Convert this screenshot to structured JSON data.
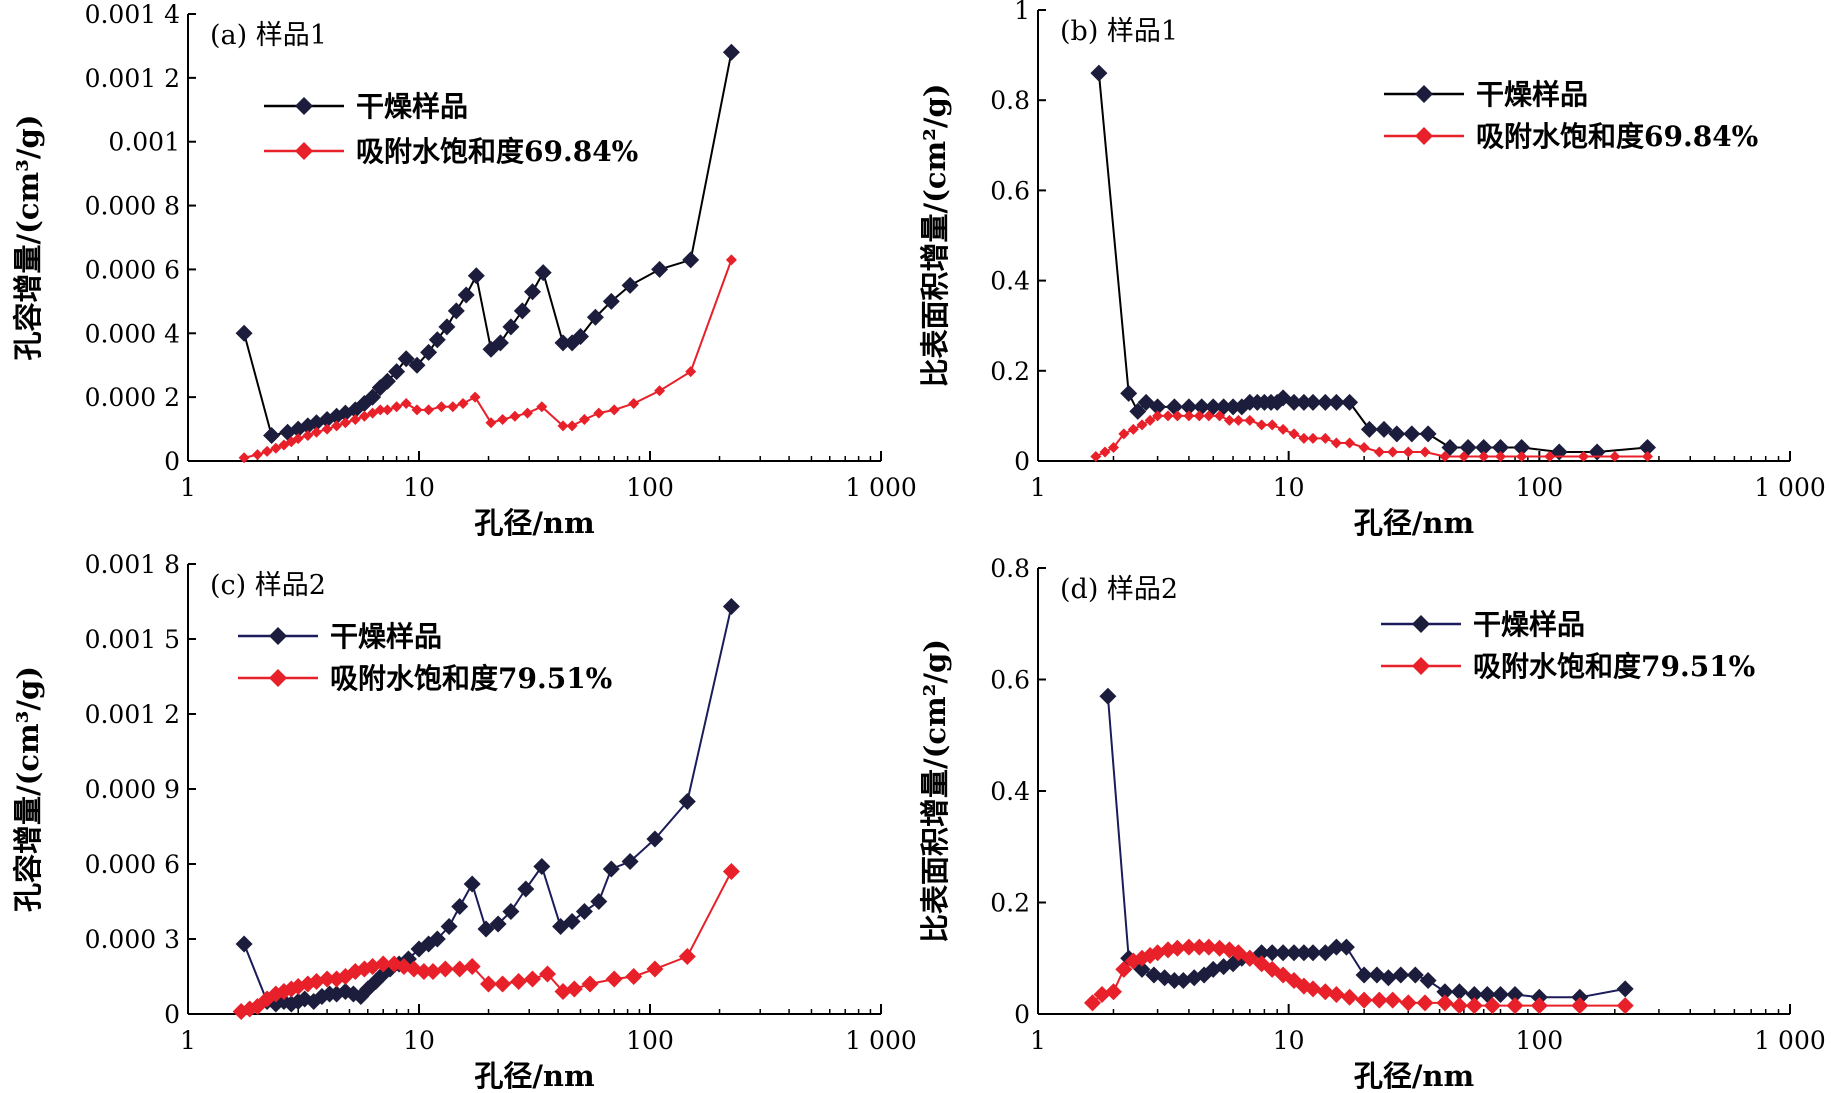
{
  "chart_data": [
    {
      "type": "line",
      "panel_label": "(a) 样品1",
      "xlabel": "孔径/nm",
      "ylabel": "孔容增量/(cm³/g)",
      "xscale": "log",
      "xlim": [
        1,
        1000
      ],
      "ylim": [
        0,
        0.0014
      ],
      "x_ticks": [
        1,
        10,
        100,
        1000
      ],
      "x_tick_labels": [
        "1",
        "10",
        "100",
        "1 000"
      ],
      "y_ticks": [
        0,
        0.0002,
        0.0004,
        0.0006,
        0.0008,
        0.001,
        0.0012,
        0.0014
      ],
      "y_tick_labels": [
        "0",
        "0.000 2",
        "0.000 4",
        "0.000 6",
        "0.000 8",
        "0.001",
        "0.001 2",
        "0.001 4"
      ],
      "legend_position": "top-left",
      "series": [
        {
          "name": "干燥样品",
          "color": "#1c1c3c",
          "line_color": "#000000",
          "marker_size": "large",
          "x": [
            1.75,
            2.3,
            2.7,
            3.0,
            3.3,
            3.6,
            4.0,
            4.4,
            4.8,
            5.3,
            5.8,
            6.3,
            6.8,
            7.3,
            8.0,
            8.8,
            9.8,
            11.0,
            12.0,
            13.2,
            14.5,
            16.0,
            17.7,
            20.5,
            22.5,
            25.0,
            28.0,
            31.0,
            34.5,
            42.0,
            46.0,
            50.0,
            58.0,
            68.0,
            82.0,
            110.0,
            150.0,
            225.0
          ],
          "y": [
            0.0004,
            8e-05,
            9e-05,
            0.0001,
            0.00011,
            0.00012,
            0.00013,
            0.00014,
            0.00015,
            0.00016,
            0.00018,
            0.0002,
            0.00023,
            0.00025,
            0.00028,
            0.00032,
            0.0003,
            0.00034,
            0.00038,
            0.00042,
            0.00047,
            0.00052,
            0.00058,
            0.00035,
            0.00037,
            0.00042,
            0.00047,
            0.00053,
            0.00059,
            0.00037,
            0.00037,
            0.00039,
            0.00045,
            0.0005,
            0.00055,
            0.0006,
            0.00063,
            0.00128
          ]
        },
        {
          "name": "吸附水饱和度69.84%",
          "color": "#e8202a",
          "line_color": "#e8202a",
          "marker_size": "small",
          "x": [
            1.75,
            2.0,
            2.2,
            2.4,
            2.6,
            2.8,
            3.0,
            3.3,
            3.6,
            4.0,
            4.4,
            4.8,
            5.3,
            5.8,
            6.3,
            6.8,
            7.3,
            8.0,
            8.8,
            9.8,
            11.0,
            12.5,
            14.0,
            15.5,
            17.5,
            20.5,
            23.0,
            26.0,
            29.5,
            34.0,
            42.0,
            46.0,
            52.0,
            60.0,
            70.0,
            85.0,
            110.0,
            150.0,
            225.0
          ],
          "y": [
            1e-05,
            2e-05,
            3e-05,
            4e-05,
            5e-05,
            6e-05,
            7e-05,
            8e-05,
            9e-05,
            0.0001,
            0.00011,
            0.00012,
            0.00013,
            0.00014,
            0.00015,
            0.00016,
            0.00016,
            0.00017,
            0.00018,
            0.00016,
            0.00016,
            0.00017,
            0.00017,
            0.00018,
            0.0002,
            0.00012,
            0.00013,
            0.00014,
            0.00015,
            0.00017,
            0.00011,
            0.00011,
            0.00013,
            0.00015,
            0.00016,
            0.00018,
            0.00022,
            0.00028,
            0.00063
          ]
        }
      ]
    },
    {
      "type": "line",
      "panel_label": "(b) 样品1",
      "xlabel": "孔径/nm",
      "ylabel": "比表面积增量/(cm²/g)",
      "xscale": "log",
      "xlim": [
        1,
        1000
      ],
      "ylim": [
        0,
        1
      ],
      "x_ticks": [
        1,
        10,
        100,
        1000
      ],
      "x_tick_labels": [
        "1",
        "10",
        "100",
        "1 000"
      ],
      "y_ticks": [
        0,
        0.2,
        0.4,
        0.6,
        0.8,
        1
      ],
      "y_tick_labels": [
        "0",
        "0.2",
        "0.4",
        "0.6",
        "0.8",
        "1"
      ],
      "legend_position": "top-right",
      "series": [
        {
          "name": "干燥样品",
          "color": "#1c1c3c",
          "line_color": "#000000",
          "marker_size": "large",
          "x": [
            1.75,
            2.3,
            2.5,
            2.7,
            3.0,
            3.5,
            4.0,
            4.5,
            5.0,
            5.5,
            6.0,
            6.5,
            7.0,
            7.5,
            8.0,
            8.5,
            9.0,
            9.5,
            10.5,
            11.5,
            12.5,
            14.0,
            15.5,
            17.5,
            21.0,
            24.0,
            27.0,
            31.0,
            36.0,
            44.0,
            52.0,
            60.0,
            70.0,
            85.0,
            120.0,
            170.0,
            270.0
          ],
          "y": [
            0.86,
            0.15,
            0.11,
            0.13,
            0.12,
            0.12,
            0.12,
            0.12,
            0.12,
            0.12,
            0.12,
            0.12,
            0.13,
            0.13,
            0.13,
            0.13,
            0.13,
            0.14,
            0.13,
            0.13,
            0.13,
            0.13,
            0.13,
            0.13,
            0.07,
            0.07,
            0.06,
            0.06,
            0.06,
            0.03,
            0.03,
            0.03,
            0.03,
            0.03,
            0.02,
            0.02,
            0.03
          ]
        },
        {
          "name": "吸附水饱和度69.84%",
          "color": "#e8202a",
          "line_color": "#e8202a",
          "marker_size": "small",
          "x": [
            1.7,
            1.85,
            2.0,
            2.2,
            2.4,
            2.6,
            2.8,
            3.0,
            3.3,
            3.6,
            4.0,
            4.4,
            4.8,
            5.3,
            5.8,
            6.3,
            7.0,
            7.8,
            8.6,
            9.5,
            10.5,
            11.5,
            12.5,
            14.0,
            15.5,
            17.5,
            20.0,
            23.0,
            26.0,
            30.0,
            35.0,
            42.0,
            50.0,
            60.0,
            70.0,
            85.0,
            110.0,
            150.0,
            200.0,
            270.0
          ],
          "y": [
            0.01,
            0.02,
            0.03,
            0.06,
            0.07,
            0.08,
            0.09,
            0.1,
            0.1,
            0.1,
            0.1,
            0.1,
            0.1,
            0.1,
            0.09,
            0.09,
            0.09,
            0.08,
            0.08,
            0.07,
            0.06,
            0.05,
            0.05,
            0.05,
            0.04,
            0.04,
            0.03,
            0.02,
            0.02,
            0.02,
            0.02,
            0.01,
            0.01,
            0.01,
            0.01,
            0.01,
            0.01,
            0.01,
            0.01,
            0.01
          ]
        }
      ]
    },
    {
      "type": "line",
      "panel_label": "(c) 样品2",
      "xlabel": "孔径/nm",
      "ylabel": "孔容增量/(cm³/g)",
      "xscale": "log",
      "xlim": [
        1,
        1000
      ],
      "ylim": [
        0,
        0.0018
      ],
      "x_ticks": [
        1,
        10,
        100,
        1000
      ],
      "x_tick_labels": [
        "1",
        "10",
        "100",
        "1 000"
      ],
      "y_ticks": [
        0,
        0.0003,
        0.0006,
        0.0009,
        0.0012,
        0.0015,
        0.0018
      ],
      "y_tick_labels": [
        "0",
        "0.000 3",
        "0.000 6",
        "0.000 9",
        "0.001 2",
        "0.001 5",
        "0.001 8"
      ],
      "legend_position": "top-left",
      "series": [
        {
          "name": "干燥样品",
          "color": "#1c1c3c",
          "line_color": "#1c1c5a",
          "marker_size": "large",
          "x": [
            1.75,
            2.2,
            2.4,
            2.6,
            2.8,
            3.0,
            3.2,
            3.5,
            3.8,
            4.1,
            4.4,
            4.8,
            5.2,
            5.6,
            6.0,
            6.5,
            7.0,
            7.5,
            8.2,
            9.0,
            10.0,
            11.0,
            12.0,
            13.5,
            15.0,
            17.0,
            19.5,
            22.0,
            25.0,
            29.0,
            34.0,
            41.0,
            46.0,
            52.0,
            60.0,
            68.0,
            82.0,
            105.0,
            145.0,
            225.0
          ],
          "y": [
            0.00028,
            5e-05,
            4e-05,
            5e-05,
            4e-05,
            5e-05,
            6e-05,
            5e-05,
            7e-05,
            8e-05,
            8e-05,
            9e-05,
            8e-05,
            7e-05,
            0.0001,
            0.00013,
            0.00016,
            0.00018,
            0.0002,
            0.00022,
            0.00026,
            0.00028,
            0.0003,
            0.00035,
            0.00043,
            0.00052,
            0.00034,
            0.00036,
            0.00041,
            0.0005,
            0.00059,
            0.00035,
            0.00037,
            0.00041,
            0.00045,
            0.00058,
            0.00061,
            0.0007,
            0.00085,
            0.00163
          ]
        },
        {
          "name": "吸附水饱和度79.51%",
          "color": "#e8202a",
          "line_color": "#e8202a",
          "marker_size": "large",
          "x": [
            1.7,
            1.85,
            2.0,
            2.2,
            2.4,
            2.6,
            2.8,
            3.0,
            3.3,
            3.6,
            4.0,
            4.4,
            4.8,
            5.3,
            5.8,
            6.3,
            7.0,
            7.8,
            8.6,
            9.5,
            10.5,
            11.5,
            13.0,
            15.0,
            17.0,
            20.0,
            23.0,
            27.0,
            31.0,
            36.0,
            42.0,
            47.0,
            55.0,
            70.0,
            85.0,
            105.0,
            145.0,
            225.0
          ],
          "y": [
            1e-05,
            2e-05,
            3e-05,
            6e-05,
            8e-05,
            9e-05,
            0.0001,
            0.00011,
            0.00012,
            0.00013,
            0.00014,
            0.00014,
            0.00015,
            0.00017,
            0.00018,
            0.00019,
            0.0002,
            0.0002,
            0.00019,
            0.00018,
            0.00017,
            0.00017,
            0.00018,
            0.00018,
            0.00019,
            0.00012,
            0.00012,
            0.00013,
            0.00014,
            0.00016,
            9e-05,
            0.0001,
            0.00012,
            0.00014,
            0.00015,
            0.00018,
            0.00023,
            0.00057
          ]
        }
      ]
    },
    {
      "type": "line",
      "panel_label": "(d) 样品2",
      "xlabel": "孔径/nm",
      "ylabel": "比表面积增量/(cm²/g)",
      "xscale": "log",
      "xlim": [
        1,
        1000
      ],
      "ylim": [
        0,
        0.8
      ],
      "x_ticks": [
        1,
        10,
        100,
        1000
      ],
      "x_tick_labels": [
        "1",
        "10",
        "100",
        "1 000"
      ],
      "y_ticks": [
        0,
        0.2,
        0.4,
        0.6,
        0.8
      ],
      "y_tick_labels": [
        "0",
        "0.2",
        "0.4",
        "0.6",
        "0.8"
      ],
      "legend_position": "top-right",
      "series": [
        {
          "name": "干燥样品",
          "color": "#1c1c3c",
          "line_color": "#1c1c5a",
          "marker_size": "large",
          "x": [
            1.9,
            2.3,
            2.6,
            2.9,
            3.2,
            3.5,
            3.8,
            4.2,
            4.6,
            5.0,
            5.5,
            6.0,
            6.5,
            7.0,
            7.8,
            8.6,
            9.5,
            10.5,
            11.5,
            12.5,
            14.0,
            15.5,
            17.0,
            20.0,
            22.5,
            25.0,
            28.0,
            32.0,
            36.0,
            42.0,
            48.0,
            55.0,
            62.0,
            70.0,
            80.0,
            100.0,
            145.0,
            220.0
          ],
          "y": [
            0.57,
            0.1,
            0.08,
            0.07,
            0.065,
            0.06,
            0.06,
            0.065,
            0.07,
            0.08,
            0.085,
            0.09,
            0.1,
            0.1,
            0.11,
            0.11,
            0.11,
            0.11,
            0.11,
            0.11,
            0.11,
            0.12,
            0.12,
            0.07,
            0.07,
            0.065,
            0.07,
            0.07,
            0.06,
            0.04,
            0.04,
            0.035,
            0.035,
            0.035,
            0.035,
            0.03,
            0.03,
            0.045
          ]
        },
        {
          "name": "吸附水饱和度79.51%",
          "color": "#e8202a",
          "line_color": "#e8202a",
          "marker_size": "large",
          "x": [
            1.65,
            1.8,
            2.0,
            2.2,
            2.4,
            2.6,
            2.8,
            3.0,
            3.3,
            3.6,
            4.0,
            4.4,
            4.8,
            5.3,
            5.8,
            6.3,
            7.0,
            7.8,
            8.6,
            9.5,
            10.5,
            11.5,
            12.5,
            14.0,
            15.5,
            17.5,
            20.0,
            23.0,
            26.0,
            30.0,
            35.0,
            42.0,
            48.0,
            55.0,
            65.0,
            80.0,
            100.0,
            145.0,
            220.0
          ],
          "y": [
            0.02,
            0.035,
            0.04,
            0.08,
            0.095,
            0.1,
            0.105,
            0.11,
            0.115,
            0.118,
            0.12,
            0.12,
            0.12,
            0.118,
            0.115,
            0.11,
            0.1,
            0.09,
            0.08,
            0.07,
            0.06,
            0.05,
            0.045,
            0.04,
            0.035,
            0.03,
            0.025,
            0.025,
            0.025,
            0.02,
            0.02,
            0.02,
            0.015,
            0.015,
            0.015,
            0.015,
            0.015,
            0.015,
            0.015
          ]
        }
      ]
    }
  ]
}
